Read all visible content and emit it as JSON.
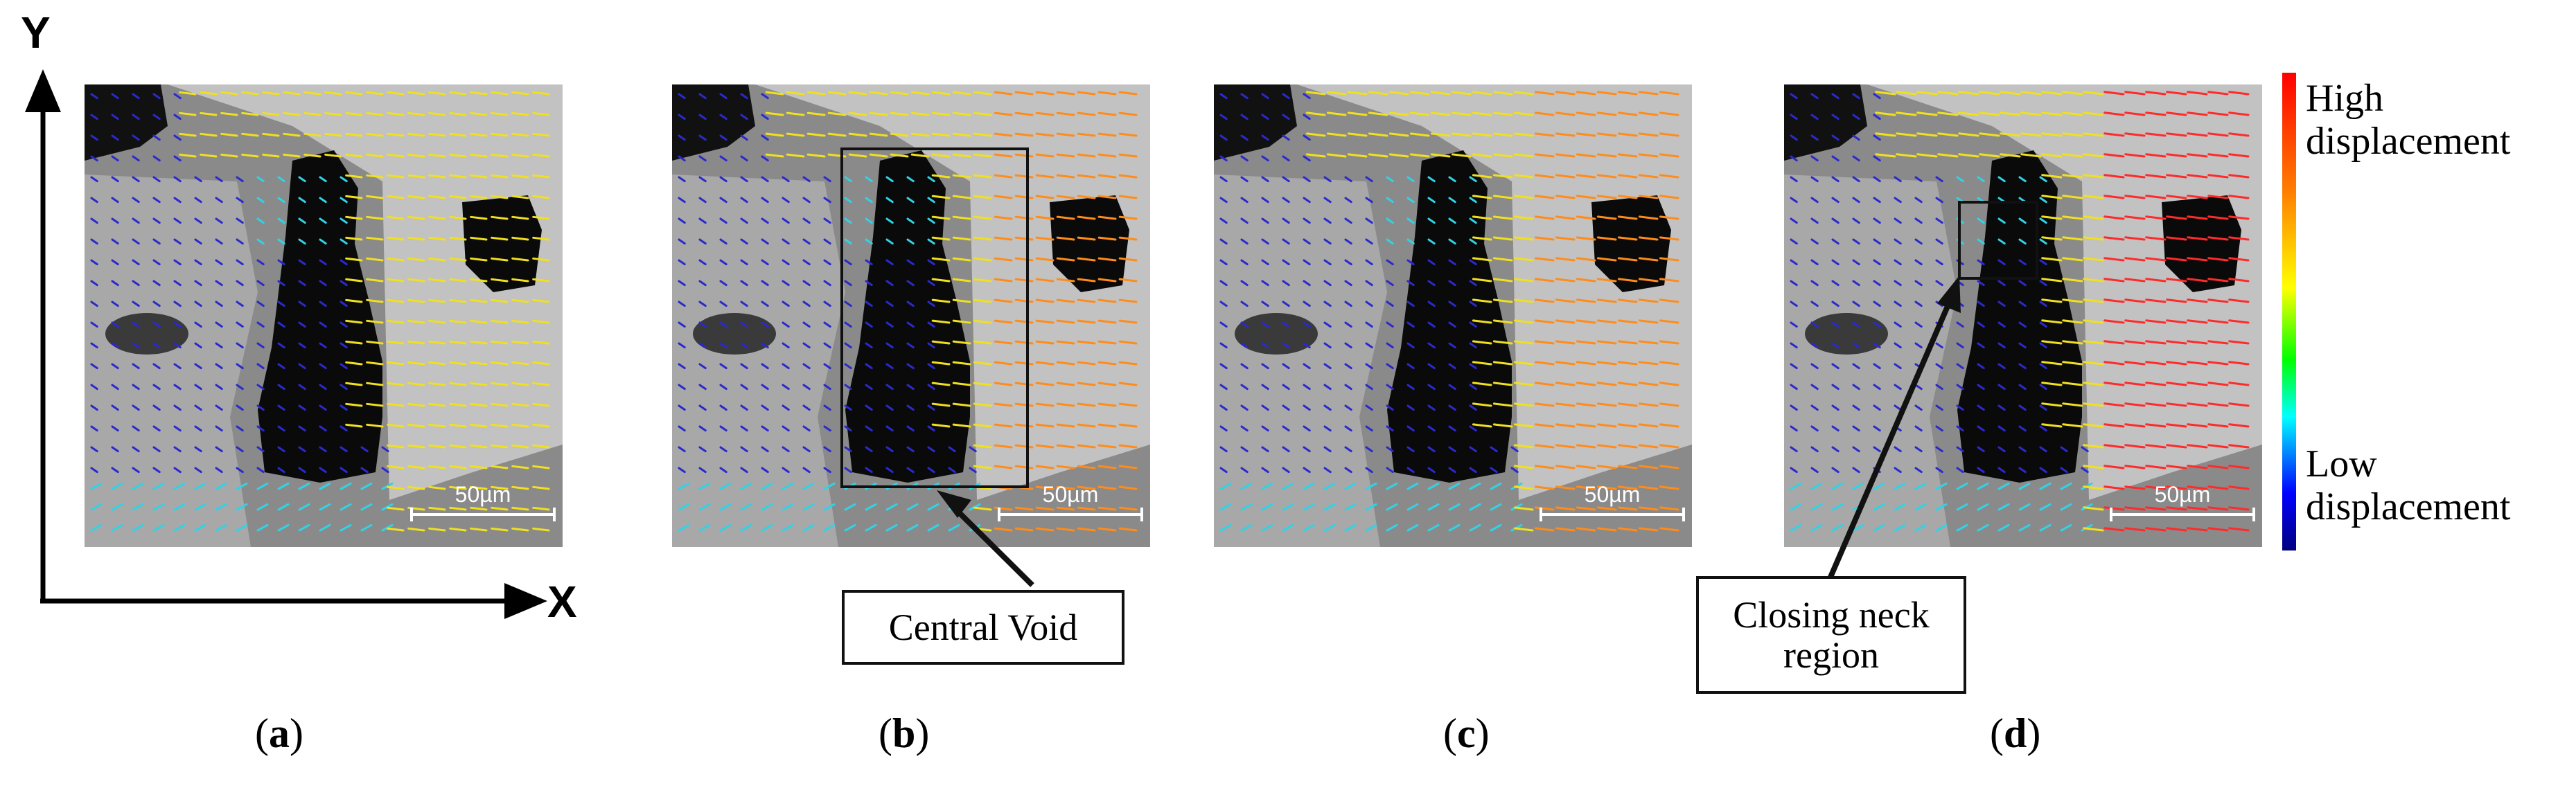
{
  "panels": [
    {
      "id": "a",
      "label": "a",
      "scale_label": "50µm",
      "magnitude": 0.45
    },
    {
      "id": "b",
      "label": "b",
      "scale_label": "50µm",
      "magnitude": 0.6
    },
    {
      "id": "c",
      "label": "c",
      "scale_label": "50µm",
      "magnitude": 0.78
    },
    {
      "id": "d",
      "label": "d",
      "scale_label": "50µm",
      "magnitude": 0.95
    }
  ],
  "axes": {
    "x": "X",
    "y": "Y"
  },
  "callouts": {
    "central_void": "Central Void",
    "closing_neck": "Closing neck region"
  },
  "colorbar": {
    "high": "High displacement",
    "low": "Low displacement",
    "colors": [
      "#ff0000",
      "#ff7f00",
      "#ffff00",
      "#00ff00",
      "#00ffff",
      "#0000ff",
      "#00007f"
    ]
  },
  "arrow_colors": {
    "background": "#2a2acc",
    "mid": "#32d2e6",
    "yellow": "#f0e020",
    "orange": "#ff8c1a",
    "red": "#ff2a2a"
  }
}
